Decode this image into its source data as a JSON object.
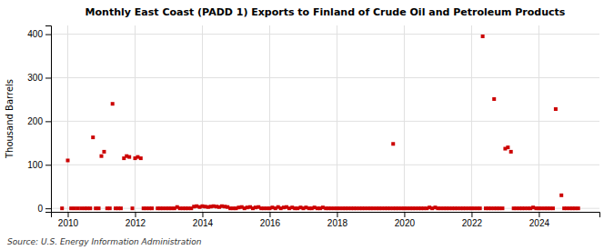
{
  "chart_data": {
    "type": "scatter",
    "title": "Monthly East Coast (PADD 1) Exports to Finland of Crude Oil and Petroleum Products",
    "ylabel": "Thousand Barrels",
    "source": "Source: U.S. Energy Information Administration",
    "color": "#cc0000",
    "marker": "square",
    "grid": true,
    "xlim": [
      2009.5,
      2025.8
    ],
    "ylim": [
      -8,
      420
    ],
    "xticks": [
      2010,
      2012,
      2014,
      2016,
      2018,
      2020,
      2022,
      2024
    ],
    "yticks": [
      0,
      100,
      200,
      300,
      400
    ],
    "x": [
      2010.0,
      2010.75,
      2011.0,
      2011.08,
      2011.33,
      2011.67,
      2011.75,
      2011.83,
      2012.0,
      2012.08,
      2012.17,
      2009.83,
      2010.1,
      2010.2,
      2010.3,
      2010.4,
      2010.5,
      2010.58,
      2010.67,
      2010.83,
      2010.92,
      2011.17,
      2011.25,
      2011.42,
      2011.5,
      2011.58,
      2011.92,
      2012.25,
      2012.33,
      2012.42,
      2012.5,
      2012.67,
      2012.75,
      2012.83,
      2012.92,
      2013.0,
      2013.08,
      2013.17,
      2013.25,
      2013.33,
      2013.42,
      2013.5,
      2013.58,
      2013.67,
      2013.75,
      2013.83,
      2013.92,
      2014.0,
      2014.08,
      2014.17,
      2014.25,
      2014.33,
      2014.42,
      2014.5,
      2014.58,
      2014.67,
      2014.75,
      2014.83,
      2014.92,
      2015.0,
      2015.08,
      2015.17,
      2015.25,
      2015.33,
      2015.42,
      2015.5,
      2015.58,
      2015.67,
      2015.75,
      2015.83,
      2015.92,
      2016.0,
      2016.08,
      2016.17,
      2016.25,
      2016.33,
      2016.42,
      2016.5,
      2016.58,
      2016.67,
      2016.75,
      2016.83,
      2016.92,
      2017.0,
      2017.08,
      2017.17,
      2017.25,
      2017.33,
      2017.42,
      2017.5,
      2017.58,
      2017.67,
      2017.75,
      2017.83,
      2017.92,
      2018.0,
      2018.08,
      2018.17,
      2018.25,
      2018.33,
      2018.42,
      2018.5,
      2018.58,
      2018.67,
      2018.75,
      2018.83,
      2018.92,
      2019.0,
      2019.08,
      2019.17,
      2019.25,
      2019.33,
      2019.42,
      2019.5,
      2019.58,
      2019.67,
      2019.75,
      2019.83,
      2019.92,
      2019.67,
      2020.0,
      2020.08,
      2020.17,
      2020.25,
      2020.33,
      2020.42,
      2020.5,
      2020.58,
      2020.67,
      2020.75,
      2020.83,
      2020.92,
      2021.0,
      2021.08,
      2021.17,
      2021.25,
      2021.33,
      2021.42,
      2021.5,
      2021.58,
      2021.67,
      2021.75,
      2021.83,
      2021.92,
      2022.0,
      2022.08,
      2022.17,
      2022.25,
      2022.33,
      2022.42,
      2022.5,
      2022.58,
      2022.67,
      2022.75,
      2022.83,
      2022.92,
      2022.67,
      2023.0,
      2023.08,
      2023.17,
      2023.25,
      2023.33,
      2023.42,
      2023.5,
      2023.58,
      2023.67,
      2023.75,
      2023.83,
      2023.92,
      2024.0,
      2024.08,
      2024.17,
      2024.25,
      2024.33,
      2024.42,
      2024.5,
      2024.67,
      2024.75,
      2024.83,
      2024.92,
      2025.0,
      2025.08,
      2025.17
    ],
    "values": [
      110,
      163,
      120,
      130,
      240,
      115,
      120,
      118,
      115,
      118,
      115,
      0,
      0,
      0,
      0,
      0,
      0,
      0,
      0,
      0,
      0,
      0,
      0,
      0,
      0,
      0,
      0,
      0,
      0,
      0,
      0,
      0,
      0,
      0,
      0,
      0,
      0,
      0,
      3,
      0,
      0,
      0,
      0,
      0,
      4,
      5,
      3,
      5,
      4,
      3,
      4,
      5,
      4,
      3,
      5,
      4,
      3,
      0,
      0,
      0,
      2,
      3,
      0,
      2,
      3,
      0,
      2,
      3,
      0,
      0,
      0,
      0,
      2,
      0,
      3,
      0,
      2,
      3,
      0,
      2,
      0,
      0,
      2,
      0,
      2,
      0,
      0,
      2,
      0,
      0,
      2,
      0,
      0,
      0,
      0,
      0,
      0,
      0,
      0,
      0,
      0,
      0,
      0,
      0,
      0,
      0,
      0,
      0,
      0,
      0,
      0,
      0,
      0,
      0,
      0,
      0,
      0,
      0,
      0,
      148,
      0,
      0,
      0,
      0,
      0,
      0,
      0,
      0,
      0,
      2,
      0,
      2,
      0,
      0,
      0,
      0,
      0,
      0,
      0,
      0,
      0,
      0,
      0,
      0,
      0,
      0,
      0,
      0,
      395,
      0,
      0,
      0,
      0,
      0,
      0,
      0,
      251,
      137,
      140,
      130,
      0,
      0,
      0,
      0,
      0,
      0,
      0,
      2,
      0,
      0,
      0,
      0,
      0,
      0,
      0,
      228,
      30,
      0,
      0,
      0,
      0,
      0,
      0
    ]
  }
}
